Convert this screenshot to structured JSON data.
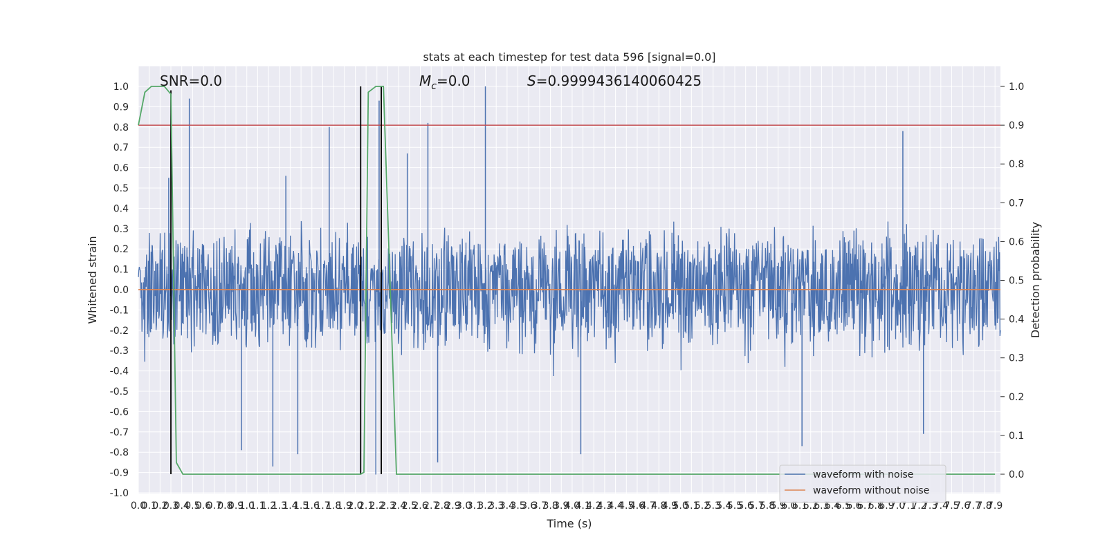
{
  "chart_data": {
    "type": "line",
    "title": "stats at each timestep for test data 596 [signal=0.0]",
    "xlabel": "Time (s)",
    "ylabel_left": "Whitened strain",
    "ylabel_right": "Detection probability",
    "xlim": [
      0.0,
      7.95
    ],
    "ylim_left": [
      -1.0,
      1.0
    ],
    "ylim_right": [
      0.0,
      1.0
    ],
    "x_ticks": [
      "0.0",
      "0.1",
      "0.2",
      "0.3",
      "0.4",
      "0.5",
      "0.6",
      "0.7",
      "0.8",
      "0.9",
      "1.0",
      "1.1",
      "1.2",
      "1.3",
      "1.4",
      "1.5",
      "1.6",
      "1.7",
      "1.8",
      "1.9",
      "2.0",
      "2.1",
      "2.2",
      "2.3",
      "2.4",
      "2.5",
      "2.6",
      "2.7",
      "2.8",
      "2.9",
      "3.0",
      "3.1",
      "3.2",
      "3.3",
      "3.4",
      "3.5",
      "3.6",
      "3.7",
      "3.8",
      "3.9",
      "4.0",
      "4.1",
      "4.2",
      "4.3",
      "4.4",
      "4.5",
      "4.6",
      "4.7",
      "4.8",
      "4.9",
      "5.0",
      "5.1",
      "5.2",
      "5.3",
      "5.4",
      "5.5",
      "5.6",
      "5.7",
      "5.8",
      "5.9",
      "6.0",
      "6.1",
      "6.2",
      "6.3",
      "6.4",
      "6.5",
      "6.6",
      "6.7",
      "6.8",
      "6.9",
      "7.0",
      "7.1",
      "7.2",
      "7.3",
      "7.4",
      "7.5",
      "7.6",
      "7.7",
      "7.8",
      "7.9"
    ],
    "y_ticks_left": [
      "-1.0",
      "-0.9",
      "-0.8",
      "-0.7",
      "-0.6",
      "-0.5",
      "-0.4",
      "-0.3",
      "-0.2",
      "-0.1",
      "0.0",
      "0.1",
      "0.2",
      "0.3",
      "0.4",
      "0.5",
      "0.6",
      "0.7",
      "0.8",
      "0.9",
      "1.0"
    ],
    "y_ticks_right": [
      "0.0",
      "0.1",
      "0.2",
      "0.3",
      "0.4",
      "0.5",
      "0.6",
      "0.7",
      "0.8",
      "0.9",
      "1.0"
    ],
    "grid": true,
    "legend_placement": "lower-right",
    "annotations": {
      "snr": "SNR=0.0",
      "mc_symbol": "M",
      "mc_sub": "c",
      "mc_value": "=0.0",
      "s_symbol": "S",
      "s_value": "=0.9999436140060425"
    },
    "threshold_right": 0.9,
    "series": [
      {
        "name": "waveform with noise",
        "axis": "left",
        "color": "#4c72b0",
        "style": "noise",
        "amplitude": 0.23,
        "peaks": [
          [
            0.28,
            0.55
          ],
          [
            0.47,
            0.94
          ],
          [
            1.36,
            0.56
          ],
          [
            1.76,
            0.8
          ],
          [
            2.22,
            0.93
          ],
          [
            2.48,
            0.67
          ],
          [
            2.67,
            0.82
          ],
          [
            3.2,
            1.0
          ],
          [
            7.05,
            0.78
          ],
          [
            0.95,
            -0.79
          ],
          [
            1.24,
            -0.87
          ],
          [
            1.47,
            -0.81
          ],
          [
            2.19,
            -0.91
          ],
          [
            2.76,
            -0.85
          ],
          [
            4.08,
            -0.81
          ],
          [
            6.12,
            -0.77
          ],
          [
            7.24,
            -0.71
          ]
        ]
      },
      {
        "name": "waveform without noise",
        "axis": "left",
        "color": "#dd8452",
        "x": [
          0.0,
          7.95
        ],
        "y": [
          0.0,
          0.0
        ]
      },
      {
        "name": "detection probability",
        "axis": "right",
        "color": "#55a868",
        "x": [
          0.0,
          0.06,
          0.12,
          0.24,
          0.3,
          0.35,
          0.41,
          2.05,
          2.08,
          2.12,
          2.19,
          2.26,
          2.38,
          7.9
        ],
        "y": [
          0.9,
          0.985,
          1.0,
          1.0,
          0.98,
          0.03,
          0.0,
          0.0,
          0.005,
          0.985,
          1.0,
          1.0,
          0.0,
          0.0
        ]
      },
      {
        "name": "threshold",
        "axis": "right",
        "color": "#c44e52",
        "x": [
          0.0,
          7.95
        ],
        "y": [
          0.9,
          0.9
        ]
      }
    ],
    "vlines": [
      {
        "x": 0.3,
        "y_bottom": 0.0,
        "y_top": 0.99
      },
      {
        "x": 2.05,
        "y_bottom": 0.0,
        "y_top": 1.0
      },
      {
        "x": 2.24,
        "y_bottom": 0.0,
        "y_top": 1.0
      }
    ],
    "legend_entries": [
      {
        "label": "waveform with noise",
        "color": "#4c72b0"
      },
      {
        "label": "waveform without noise",
        "color": "#dd8452"
      }
    ]
  }
}
